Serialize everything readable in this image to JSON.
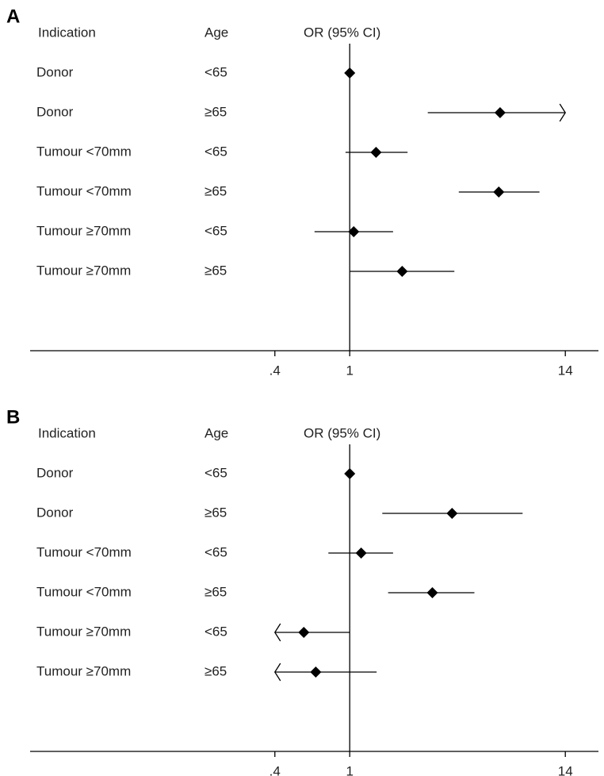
{
  "chart_data": [
    {
      "type": "forest",
      "panel_label": "A",
      "column_headers": [
        "Indication",
        "Age",
        "OR (95% CI)"
      ],
      "categories": [
        "Donor",
        "Donor",
        "Tumour <70mm",
        "Tumour <70mm",
        "Tumour ≥70mm",
        "Tumour ≥70mm"
      ],
      "ages": [
        "<65",
        "≥65",
        "<65",
        "≥65",
        "<65",
        "≥65"
      ],
      "values": [
        1,
        6.3,
        1.38,
        6.2,
        1.05,
        1.9
      ],
      "lower": [
        null,
        2.6,
        0.95,
        3.8,
        0.65,
        1.0
      ],
      "upper": [
        null,
        20,
        2.03,
        10.2,
        1.7,
        3.6
      ],
      "xlim": [
        0.02,
        21
      ],
      "log_scale": true,
      "xticks": [
        {
          "value": 0.4,
          "label": ".4"
        },
        1,
        14
      ],
      "color": "#000000"
    },
    {
      "type": "forest",
      "panel_label": "B",
      "column_headers": [
        "Indication",
        "Age",
        "OR (95% CI)"
      ],
      "categories": [
        "Donor",
        "Donor",
        "Tumour <70mm",
        "Tumour <70mm",
        "Tumour ≥70mm",
        "Tumour ≥70mm"
      ],
      "ages": [
        "<65",
        "≥65",
        "<65",
        "≥65",
        "<65",
        "≥65"
      ],
      "values": [
        1,
        3.5,
        1.15,
        2.75,
        0.57,
        0.66
      ],
      "lower": [
        null,
        1.49,
        0.77,
        1.6,
        0.3,
        0.3
      ],
      "upper": [
        null,
        8.3,
        1.7,
        4.6,
        1.0,
        1.39
      ],
      "xlim": [
        0.02,
        21
      ],
      "log_scale": true,
      "xticks": [
        {
          "value": 0.4,
          "label": ".4"
        },
        1,
        14
      ],
      "color": "#000000"
    }
  ]
}
